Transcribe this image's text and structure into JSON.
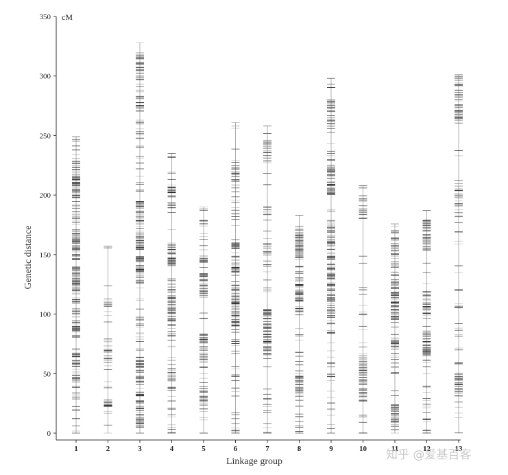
{
  "chart_data": {
    "type": "linkage-map",
    "ylabel": "Genetic distance",
    "unit": "cM",
    "xlabel": "Linkage group",
    "ylim": [
      0,
      350
    ],
    "yticks": [
      0,
      50,
      100,
      150,
      200,
      250,
      300,
      350
    ],
    "groups": [
      {
        "name": "1",
        "length": 249,
        "start": 0,
        "marker_count": 260,
        "dense_regions": [
          [
            45,
            68,
            0.6
          ],
          [
            85,
            105,
            0.5
          ],
          [
            118,
            140,
            1.0
          ],
          [
            145,
            168,
            1.0
          ],
          [
            175,
            185,
            0.5
          ],
          [
            197,
            230,
            1.0
          ]
        ]
      },
      {
        "name": "2",
        "length": 157,
        "start": 0,
        "marker_count": 55,
        "dense_regions": [
          [
            22,
            28,
            0.9
          ],
          [
            60,
            80,
            0.4
          ],
          [
            95,
            115,
            0.4
          ]
        ]
      },
      {
        "name": "3",
        "length": 328,
        "start": 0,
        "marker_count": 280,
        "dense_regions": [
          [
            5,
            35,
            0.9
          ],
          [
            40,
            65,
            0.6
          ],
          [
            125,
            150,
            1.0
          ],
          [
            155,
            195,
            1.0
          ],
          [
            270,
            320,
            0.6
          ]
        ]
      },
      {
        "name": "4",
        "length": 235,
        "start": 0,
        "marker_count": 160,
        "dense_regions": [
          [
            35,
            55,
            0.5
          ],
          [
            90,
            130,
            0.7
          ],
          [
            140,
            160,
            1.0
          ],
          [
            190,
            210,
            0.7
          ]
        ]
      },
      {
        "name": "5",
        "length": 190,
        "start": 0,
        "marker_count": 130,
        "dense_regions": [
          [
            25,
            40,
            0.5
          ],
          [
            60,
            85,
            0.5
          ],
          [
            115,
            135,
            1.0
          ],
          [
            140,
            150,
            0.4
          ]
        ]
      },
      {
        "name": "6",
        "length": 261,
        "start": 0,
        "marker_count": 170,
        "dense_regions": [
          [
            80,
            100,
            0.6
          ],
          [
            100,
            125,
            1.0
          ],
          [
            135,
            160,
            0.9
          ],
          [
            210,
            225,
            0.6
          ]
        ]
      },
      {
        "name": "7",
        "length": 258,
        "start": 0,
        "marker_count": 140,
        "dense_regions": [
          [
            65,
            105,
            1.0
          ],
          [
            145,
            160,
            0.5
          ],
          [
            225,
            245,
            0.4
          ]
        ]
      },
      {
        "name": "8",
        "length": 183,
        "start": 0,
        "marker_count": 140,
        "dense_regions": [
          [
            30,
            50,
            0.8
          ],
          [
            110,
            130,
            1.0
          ],
          [
            145,
            175,
            0.8
          ]
        ]
      },
      {
        "name": "9",
        "length": 298,
        "start": 0,
        "marker_count": 220,
        "dense_regions": [
          [
            100,
            180,
            0.6
          ],
          [
            200,
            225,
            1.0
          ],
          [
            250,
            280,
            0.4
          ]
        ]
      },
      {
        "name": "10",
        "length": 208,
        "start": 0,
        "marker_count": 85,
        "dense_regions": [
          [
            25,
            65,
            1.0
          ],
          [
            180,
            200,
            0.4
          ]
        ]
      },
      {
        "name": "11",
        "length": 176,
        "start": 0,
        "marker_count": 160,
        "dense_regions": [
          [
            5,
            25,
            0.7
          ],
          [
            60,
            80,
            0.7
          ],
          [
            95,
            130,
            1.0
          ],
          [
            140,
            170,
            0.6
          ]
        ]
      },
      {
        "name": "12",
        "length": 187,
        "start": 0,
        "marker_count": 130,
        "dense_regions": [
          [
            65,
            85,
            1.0
          ],
          [
            100,
            120,
            0.6
          ],
          [
            155,
            180,
            0.7
          ]
        ]
      },
      {
        "name": "13",
        "length": 301,
        "start": 0,
        "marker_count": 125,
        "dense_regions": [
          [
            30,
            50,
            0.9
          ],
          [
            190,
            210,
            0.5
          ],
          [
            260,
            300,
            0.8
          ]
        ]
      }
    ]
  },
  "watermark": "知乎 @爱基百客"
}
